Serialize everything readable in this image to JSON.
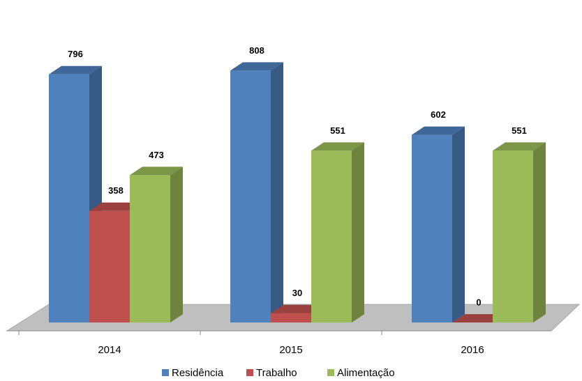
{
  "chart_data": {
    "type": "bar3d",
    "categories": [
      "2014",
      "2015",
      "2016"
    ],
    "series": [
      {
        "name": "Residência",
        "color": "#4f81bd",
        "values": [
          796,
          808,
          602
        ]
      },
      {
        "name": "Trabalho",
        "color": "#c0504d",
        "values": [
          358,
          30,
          0
        ]
      },
      {
        "name": "Alimentação",
        "color": "#9bbb59",
        "values": [
          473,
          551,
          551
        ]
      }
    ],
    "legend": "bottom"
  }
}
